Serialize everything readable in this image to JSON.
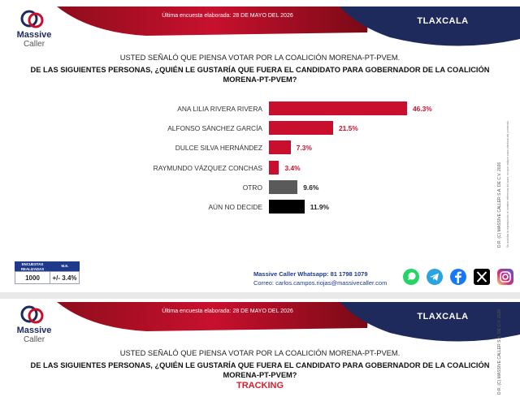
{
  "header": {
    "brand_line1": "Massive",
    "brand_line2": "Caller",
    "survey_date": "Última encuesta elaborada: 28 DE MAYO DEL 2026",
    "state": "TLAXCALA"
  },
  "question": {
    "line1": "USTED SEÑALÓ QUE PIENSA VOTAR POR LA COALICIÓN MORENA-PT-PVEM.",
    "line2": "DE LAS SIGUIENTES PERSONAS, ¿QUIÉN LE GUSTARÍA QUE FUERA EL CANDIDATO PARA GOBERNADOR DE LA COALICIÓN",
    "line3": "MORENA-PT-PVEM?"
  },
  "chart_data": {
    "type": "bar",
    "orientation": "horizontal",
    "categories": [
      "ANA LILIA RIVERA RIVERA",
      "ALFONSO SÁNCHEZ GARCÍA",
      "DULCE SILVA HERNÁNDEZ",
      "RAYMUNDO VÁZQUEZ CONCHAS",
      "OTRO",
      "AÚN NO DECIDE"
    ],
    "values": [
      46.3,
      21.5,
      7.3,
      3.4,
      9.6,
      11.9
    ],
    "value_labels": [
      "46.3%",
      "21.5%",
      "7.3%",
      "3.4%",
      "9.6%",
      "11.9%"
    ],
    "colors": [
      "#c8102e",
      "#c8102e",
      "#c8102e",
      "#c8102e",
      "#5a5a5a",
      "#000000"
    ],
    "xlim": [
      0,
      50
    ],
    "grid": false,
    "legend": "none"
  },
  "sample_table": {
    "header_sample": "ENCUESTAS REALIZADAS",
    "header_error": "M.E.",
    "sample": "1000",
    "error": "+/- 3.4%"
  },
  "contact": {
    "whatsapp": "Massive Caller Whatsapp: 81 1798 1079",
    "email": "Correo: carlos.campos.riojas@massivecaller.com"
  },
  "social_icons": [
    "whatsapp-icon",
    "telegram-icon",
    "facebook-icon",
    "x-icon",
    "instagram-icon"
  ],
  "sidebar": {
    "copyright": "D.R. (C) MASSIVE CALLER S.A. DE C.V. 2026",
    "notice": "Se autoriza la reproducción el nombre referencia del autor, sin que indique votos electoral del contenido."
  },
  "slide2": {
    "brand_line1": "Massive",
    "brand_line2": "Caller",
    "survey_date": "Última encuesta elaborada: 28 DE MAYO DEL 2026",
    "state": "TLAXCALA",
    "question_line1": "USTED SEÑALÓ QUE PIENSA VOTAR POR LA COALICIÓN MORENA-PT-PVEM.",
    "question_line2": "DE LAS SIGUIENTES PERSONAS, ¿QUIÉN LE GUSTARÍA QUE FUERA EL CANDIDATO PARA GOBERNADOR DE LA COALICIÓN",
    "question_line3": "MORENA-PT-PVEM?",
    "tracking": "TRACKING",
    "sidebar_copyright": "D.R. (C) MASSIVE CALLER S.A. DE C.V. 2026"
  },
  "palette": {
    "red": "#c8102e",
    "navy": "#1f2a5c",
    "gray": "#5a5a5a"
  }
}
